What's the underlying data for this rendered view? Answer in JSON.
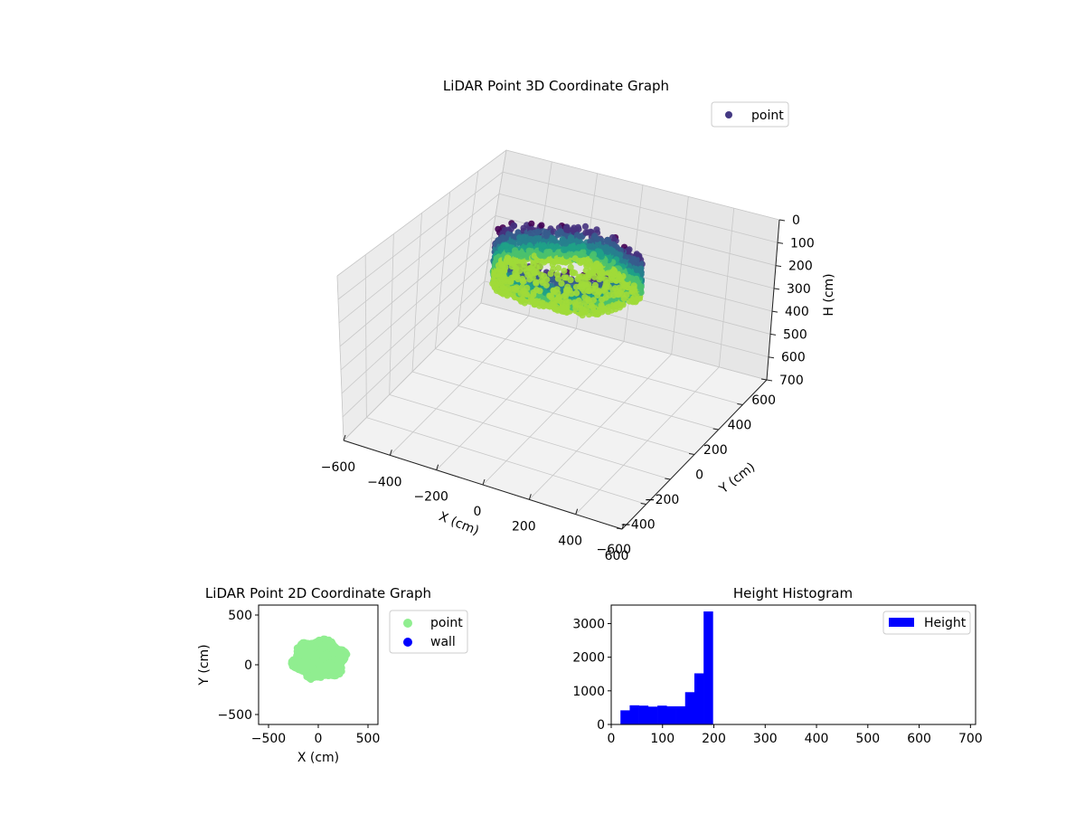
{
  "colors": {
    "pane_left": "#ececec",
    "pane_right": "#e6e6e6",
    "floor": "#f2f2f2",
    "grid": "#c8c8c8",
    "point_legend": "#443983",
    "point2d": "#90ee90",
    "wall": "#0000ff",
    "hist_bar": "#0000ff",
    "viridis": [
      "#440154",
      "#46327e",
      "#365c8d",
      "#277f8e",
      "#1fa187",
      "#4ac16d",
      "#a0da39",
      "#fde725"
    ]
  },
  "chart_data": [
    {
      "type": "scatter3d",
      "title": "LiDAR Point 3D Coordinate Graph",
      "xlabel": "X (cm)",
      "ylabel": "Y (cm)",
      "zlabel": "H (cm)",
      "xlim": [
        -600,
        600
      ],
      "ylim": [
        -600,
        600
      ],
      "zlim": [
        0,
        700
      ],
      "z_inverted": true,
      "x_ticks": [
        "−600",
        "−400",
        "−200",
        "0",
        "200",
        "400",
        "600"
      ],
      "y_ticks": [
        "−600",
        "−400",
        "−200",
        "0",
        "200",
        "400",
        "600"
      ],
      "z_ticks": [
        "0",
        "100",
        "200",
        "300",
        "400",
        "500",
        "600",
        "700"
      ],
      "legend": [
        {
          "label": "point",
          "color": "#443983",
          "marker": "circle"
        }
      ],
      "legend_position": "top-right",
      "grid": true,
      "colormap": "viridis",
      "point_cloud": {
        "description": "ring-shaped point cloud",
        "center": [
          0,
          50
        ],
        "x_range": [
          -300,
          300
        ],
        "y_range": [
          -150,
          250
        ],
        "h_range": [
          20,
          190
        ]
      }
    },
    {
      "type": "scatter",
      "title": "LiDAR Point 2D Coordinate Graph",
      "xlabel": "X (cm)",
      "ylabel": "Y (cm)",
      "xlim": [
        -600,
        600
      ],
      "ylim": [
        -600,
        600
      ],
      "x_ticks": [
        "−500",
        "0",
        "500"
      ],
      "y_ticks": [
        "−500",
        "0",
        "500"
      ],
      "legend": [
        {
          "label": "point",
          "color": "#90ee90",
          "marker": "circle"
        },
        {
          "label": "wall",
          "color": "#0000ff",
          "marker": "circle"
        }
      ],
      "legend_position": "outside-right",
      "point_cloud": {
        "description": "filled cluster",
        "x_range": [
          -280,
          300
        ],
        "y_range": [
          -160,
          270
        ]
      }
    },
    {
      "type": "bar",
      "title": "Height Histogram",
      "xlabel": "",
      "ylabel": "",
      "xlim": [
        0,
        710
      ],
      "ylim": [
        0,
        3550
      ],
      "x_ticks": [
        "0",
        "100",
        "200",
        "300",
        "400",
        "500",
        "600",
        "700"
      ],
      "y_ticks": [
        "0",
        "1000",
        "2000",
        "3000"
      ],
      "legend": [
        {
          "label": "Height",
          "color": "#0000ff",
          "marker": "patch"
        }
      ],
      "legend_position": "top-right",
      "bin_edges": [
        18,
        36,
        54,
        72,
        90,
        108,
        126,
        144,
        162,
        180,
        198
      ],
      "values": [
        420,
        570,
        560,
        530,
        560,
        540,
        540,
        960,
        1520,
        3360
      ]
    }
  ]
}
